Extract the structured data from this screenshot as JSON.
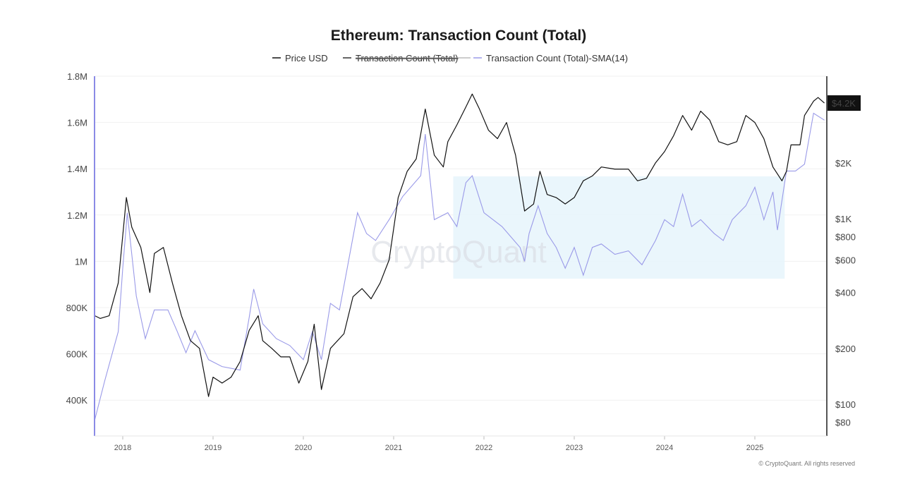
{
  "chart_data": {
    "type": "line",
    "title": "Ethereum: Transaction Count (Total)",
    "legend": [
      {
        "label": "Price USD",
        "color": "#111111",
        "hidden": false
      },
      {
        "label": "Transaction Count (Total)",
        "color": "#333333",
        "hidden": true
      },
      {
        "label": "Transaction Count (Total)-SMA(14)",
        "color": "#9a9ae8",
        "hidden": false
      }
    ],
    "legend_placement": "top-center",
    "x_range": [
      2017.69,
      2025.77
    ],
    "x_ticks": [
      "2018",
      "2019",
      "2020",
      "2021",
      "2022",
      "2023",
      "2024",
      "2025"
    ],
    "y_left": {
      "unit": "transactions",
      "range": [
        300000,
        1800000
      ],
      "ticks": [
        {
          "v": 1800000,
          "label": "1.8M"
        },
        {
          "v": 1600000,
          "label": "1.6M"
        },
        {
          "v": 1400000,
          "label": "1.4M"
        },
        {
          "v": 1200000,
          "label": "1.2M"
        },
        {
          "v": 1000000,
          "label": "1M"
        },
        {
          "v": 800000,
          "label": "800K"
        },
        {
          "v": 600000,
          "label": "600K"
        },
        {
          "v": 400000,
          "label": "400K"
        }
      ]
    },
    "y_right": {
      "unit": "USD",
      "scale": "log",
      "ticks": [
        {
          "v": 2000,
          "label": "$2K"
        },
        {
          "v": 1000,
          "label": "$1K"
        },
        {
          "v": 800,
          "label": "$800"
        },
        {
          "v": 600,
          "label": "$600"
        },
        {
          "v": 400,
          "label": "$400"
        },
        {
          "v": 200,
          "label": "$200"
        },
        {
          "v": 100,
          "label": "$100"
        },
        {
          "v": 80,
          "label": "$80"
        }
      ],
      "current_label": {
        "v": 4200,
        "label": "$4.2K"
      }
    },
    "highlight_region": {
      "x": [
        2021.66,
        2025.33
      ],
      "y": [
        925000,
        1367000
      ],
      "color": "#e6f4fc"
    },
    "series": [
      {
        "name": "Price USD",
        "axis": "right",
        "points": [
          [
            2017.69,
            300
          ],
          [
            2017.75,
            290
          ],
          [
            2017.85,
            300
          ],
          [
            2017.95,
            450
          ],
          [
            2018.04,
            1300
          ],
          [
            2018.1,
            900
          ],
          [
            2018.2,
            700
          ],
          [
            2018.3,
            400
          ],
          [
            2018.35,
            650
          ],
          [
            2018.45,
            700
          ],
          [
            2018.55,
            450
          ],
          [
            2018.65,
            300
          ],
          [
            2018.75,
            220
          ],
          [
            2018.85,
            200
          ],
          [
            2018.95,
            110
          ],
          [
            2019.0,
            140
          ],
          [
            2019.1,
            130
          ],
          [
            2019.2,
            140
          ],
          [
            2019.3,
            170
          ],
          [
            2019.4,
            250
          ],
          [
            2019.5,
            300
          ],
          [
            2019.55,
            220
          ],
          [
            2019.65,
            200
          ],
          [
            2019.75,
            180
          ],
          [
            2019.85,
            180
          ],
          [
            2019.95,
            130
          ],
          [
            2020.05,
            170
          ],
          [
            2020.12,
            270
          ],
          [
            2020.2,
            120
          ],
          [
            2020.3,
            200
          ],
          [
            2020.45,
            240
          ],
          [
            2020.55,
            380
          ],
          [
            2020.65,
            420
          ],
          [
            2020.75,
            370
          ],
          [
            2020.85,
            450
          ],
          [
            2020.95,
            600
          ],
          [
            2021.05,
            1300
          ],
          [
            2021.15,
            1800
          ],
          [
            2021.25,
            2100
          ],
          [
            2021.35,
            3900
          ],
          [
            2021.45,
            2200
          ],
          [
            2021.55,
            1900
          ],
          [
            2021.6,
            2600
          ],
          [
            2021.7,
            3200
          ],
          [
            2021.8,
            4000
          ],
          [
            2021.87,
            4700
          ],
          [
            2021.95,
            3900
          ],
          [
            2022.05,
            3000
          ],
          [
            2022.15,
            2700
          ],
          [
            2022.25,
            3300
          ],
          [
            2022.35,
            2200
          ],
          [
            2022.45,
            1100
          ],
          [
            2022.55,
            1200
          ],
          [
            2022.62,
            1800
          ],
          [
            2022.7,
            1350
          ],
          [
            2022.8,
            1300
          ],
          [
            2022.9,
            1200
          ],
          [
            2023.0,
            1300
          ],
          [
            2023.1,
            1600
          ],
          [
            2023.2,
            1700
          ],
          [
            2023.3,
            1900
          ],
          [
            2023.45,
            1850
          ],
          [
            2023.6,
            1850
          ],
          [
            2023.7,
            1600
          ],
          [
            2023.8,
            1650
          ],
          [
            2023.9,
            2000
          ],
          [
            2024.0,
            2300
          ],
          [
            2024.1,
            2800
          ],
          [
            2024.2,
            3600
          ],
          [
            2024.3,
            3000
          ],
          [
            2024.4,
            3800
          ],
          [
            2024.5,
            3400
          ],
          [
            2024.6,
            2600
          ],
          [
            2024.7,
            2500
          ],
          [
            2024.8,
            2600
          ],
          [
            2024.9,
            3600
          ],
          [
            2025.0,
            3300
          ],
          [
            2025.1,
            2700
          ],
          [
            2025.2,
            1900
          ],
          [
            2025.3,
            1600
          ],
          [
            2025.35,
            1800
          ],
          [
            2025.4,
            2500
          ],
          [
            2025.5,
            2500
          ],
          [
            2025.55,
            3600
          ],
          [
            2025.65,
            4300
          ],
          [
            2025.7,
            4500
          ],
          [
            2025.77,
            4200
          ]
        ]
      },
      {
        "name": "Transaction Count (Total)-SMA(14)",
        "axis": "left",
        "points": [
          [
            2017.69,
            315000
          ],
          [
            2017.8,
            483000
          ],
          [
            2017.95,
            696000
          ],
          [
            2018.0,
            970000
          ],
          [
            2018.05,
            1210000
          ],
          [
            2018.15,
            850000
          ],
          [
            2018.25,
            666000
          ],
          [
            2018.35,
            790000
          ],
          [
            2018.5,
            790000
          ],
          [
            2018.6,
            700000
          ],
          [
            2018.7,
            605000
          ],
          [
            2018.8,
            700000
          ],
          [
            2018.95,
            575000
          ],
          [
            2019.1,
            545000
          ],
          [
            2019.3,
            530000
          ],
          [
            2019.4,
            757000
          ],
          [
            2019.45,
            880000
          ],
          [
            2019.55,
            730000
          ],
          [
            2019.7,
            666000
          ],
          [
            2019.85,
            636000
          ],
          [
            2020.0,
            575000
          ],
          [
            2020.1,
            696000
          ],
          [
            2020.2,
            575000
          ],
          [
            2020.3,
            818000
          ],
          [
            2020.4,
            790000
          ],
          [
            2020.5,
            1000000
          ],
          [
            2020.6,
            1210000
          ],
          [
            2020.7,
            1120000
          ],
          [
            2020.8,
            1090000
          ],
          [
            2020.95,
            1180000
          ],
          [
            2021.1,
            1280000
          ],
          [
            2021.3,
            1370000
          ],
          [
            2021.35,
            1550000
          ],
          [
            2021.45,
            1180000
          ],
          [
            2021.6,
            1210000
          ],
          [
            2021.7,
            1150000
          ],
          [
            2021.8,
            1340000
          ],
          [
            2021.87,
            1370000
          ],
          [
            2022.0,
            1210000
          ],
          [
            2022.2,
            1150000
          ],
          [
            2022.4,
            1060000
          ],
          [
            2022.45,
            1000000
          ],
          [
            2022.5,
            1120000
          ],
          [
            2022.6,
            1240000
          ],
          [
            2022.7,
            1120000
          ],
          [
            2022.8,
            1060000
          ],
          [
            2022.9,
            970000
          ],
          [
            2023.0,
            1060000
          ],
          [
            2023.1,
            940000
          ],
          [
            2023.2,
            1060000
          ],
          [
            2023.3,
            1075000
          ],
          [
            2023.45,
            1030000
          ],
          [
            2023.6,
            1045000
          ],
          [
            2023.75,
            985000
          ],
          [
            2023.9,
            1090000
          ],
          [
            2024.0,
            1180000
          ],
          [
            2024.1,
            1150000
          ],
          [
            2024.2,
            1290000
          ],
          [
            2024.3,
            1150000
          ],
          [
            2024.4,
            1180000
          ],
          [
            2024.55,
            1120000
          ],
          [
            2024.65,
            1090000
          ],
          [
            2024.75,
            1180000
          ],
          [
            2024.9,
            1240000
          ],
          [
            2025.0,
            1320000
          ],
          [
            2025.1,
            1180000
          ],
          [
            2025.2,
            1300000
          ],
          [
            2025.25,
            1135000
          ],
          [
            2025.35,
            1390000
          ],
          [
            2025.45,
            1390000
          ],
          [
            2025.55,
            1420000
          ],
          [
            2025.65,
            1640000
          ],
          [
            2025.77,
            1610000
          ]
        ]
      }
    ]
  },
  "watermark": "CryptoQuant",
  "footer": "© CryptoQuant. All rights reserved"
}
